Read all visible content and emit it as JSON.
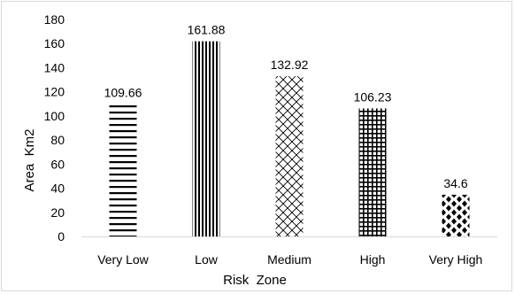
{
  "chart_data": {
    "type": "bar",
    "title": "",
    "xlabel": "Risk  Zone",
    "ylabel": "Area  Km2",
    "categories": [
      "Very Low",
      "Low",
      "Medium",
      "High",
      "Very High"
    ],
    "values": [
      109.66,
      161.88,
      132.92,
      106.23,
      34.6
    ],
    "data_labels": [
      "109.66",
      "161.88",
      "132.92",
      "106.23",
      "34.6"
    ],
    "ylim": [
      0,
      180
    ],
    "yticks": [
      0,
      20,
      40,
      60,
      80,
      100,
      120,
      140,
      160,
      180
    ],
    "ytick_labels": [
      "0",
      "20",
      "40",
      "60",
      "80",
      "100",
      "120",
      "140",
      "160",
      "180"
    ],
    "grid": false,
    "legend": "none",
    "bar_patterns": [
      "horizontal-lines",
      "vertical-lines",
      "diagonal-cross",
      "grid",
      "diamond-dots"
    ],
    "bar_color": "#000000"
  }
}
